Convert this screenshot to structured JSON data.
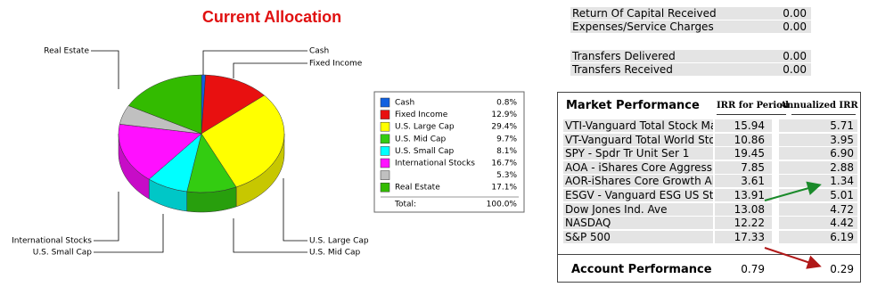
{
  "chart_data": {
    "type": "pie",
    "title": "Current Allocation",
    "categories": [
      "Cash",
      "Fixed Income",
      "U.S. Large Cap",
      "U.S. Mid Cap",
      "U.S. Small Cap",
      "International Stocks",
      null,
      "Real Estate"
    ],
    "values": [
      0.8,
      12.9,
      29.4,
      9.7,
      8.1,
      16.7,
      5.3,
      17.1
    ],
    "value_labels": [
      "0.8%",
      "12.9%",
      "29.4%",
      "9.7%",
      "8.1%",
      "16.7%",
      "5.3%",
      "17.1%"
    ],
    "colors": [
      "#1060e0",
      "#e81010",
      "#ffff00",
      "#33cc11",
      "#00ffff",
      "#ff10ff",
      "#c0c0c0",
      "#33bb00"
    ],
    "total_label": "Total:",
    "total": "100.0%"
  },
  "summary": {
    "rows": [
      [
        "Return Of Capital Received",
        "0.00"
      ],
      [
        "Expenses/Service Charges",
        "0.00"
      ],
      [
        "Transfers Delivered",
        "0.00"
      ],
      [
        "Transfers Received",
        "0.00"
      ]
    ]
  },
  "market": {
    "title": "Market Performance",
    "columns": [
      "IRR for Period",
      "Annualized IRR"
    ],
    "rows": [
      [
        "VTI-Vanguard Total Stock Mar",
        "15.94",
        "5.71"
      ],
      [
        "VT-Vanguard Total World Stoc",
        "10.86",
        "3.95"
      ],
      [
        "SPY - Spdr Tr Unit Ser 1",
        "19.45",
        "6.90"
      ],
      [
        "AOA - iShares Core Aggressive",
        "7.85",
        "2.88"
      ],
      [
        "AOR-iShares Core Growth Allo",
        "3.61",
        "1.34"
      ],
      [
        "ESGV - Vanguard ESG US Stoc",
        "13.91",
        "5.01"
      ],
      [
        "Dow Jones Ind. Ave",
        "13.08",
        "4.72"
      ],
      [
        "NASDAQ",
        "12.22",
        "4.42"
      ],
      [
        "S&P 500",
        "17.33",
        "6.19"
      ]
    ],
    "account": [
      "Account Performance",
      "0.79",
      "0.29"
    ]
  }
}
